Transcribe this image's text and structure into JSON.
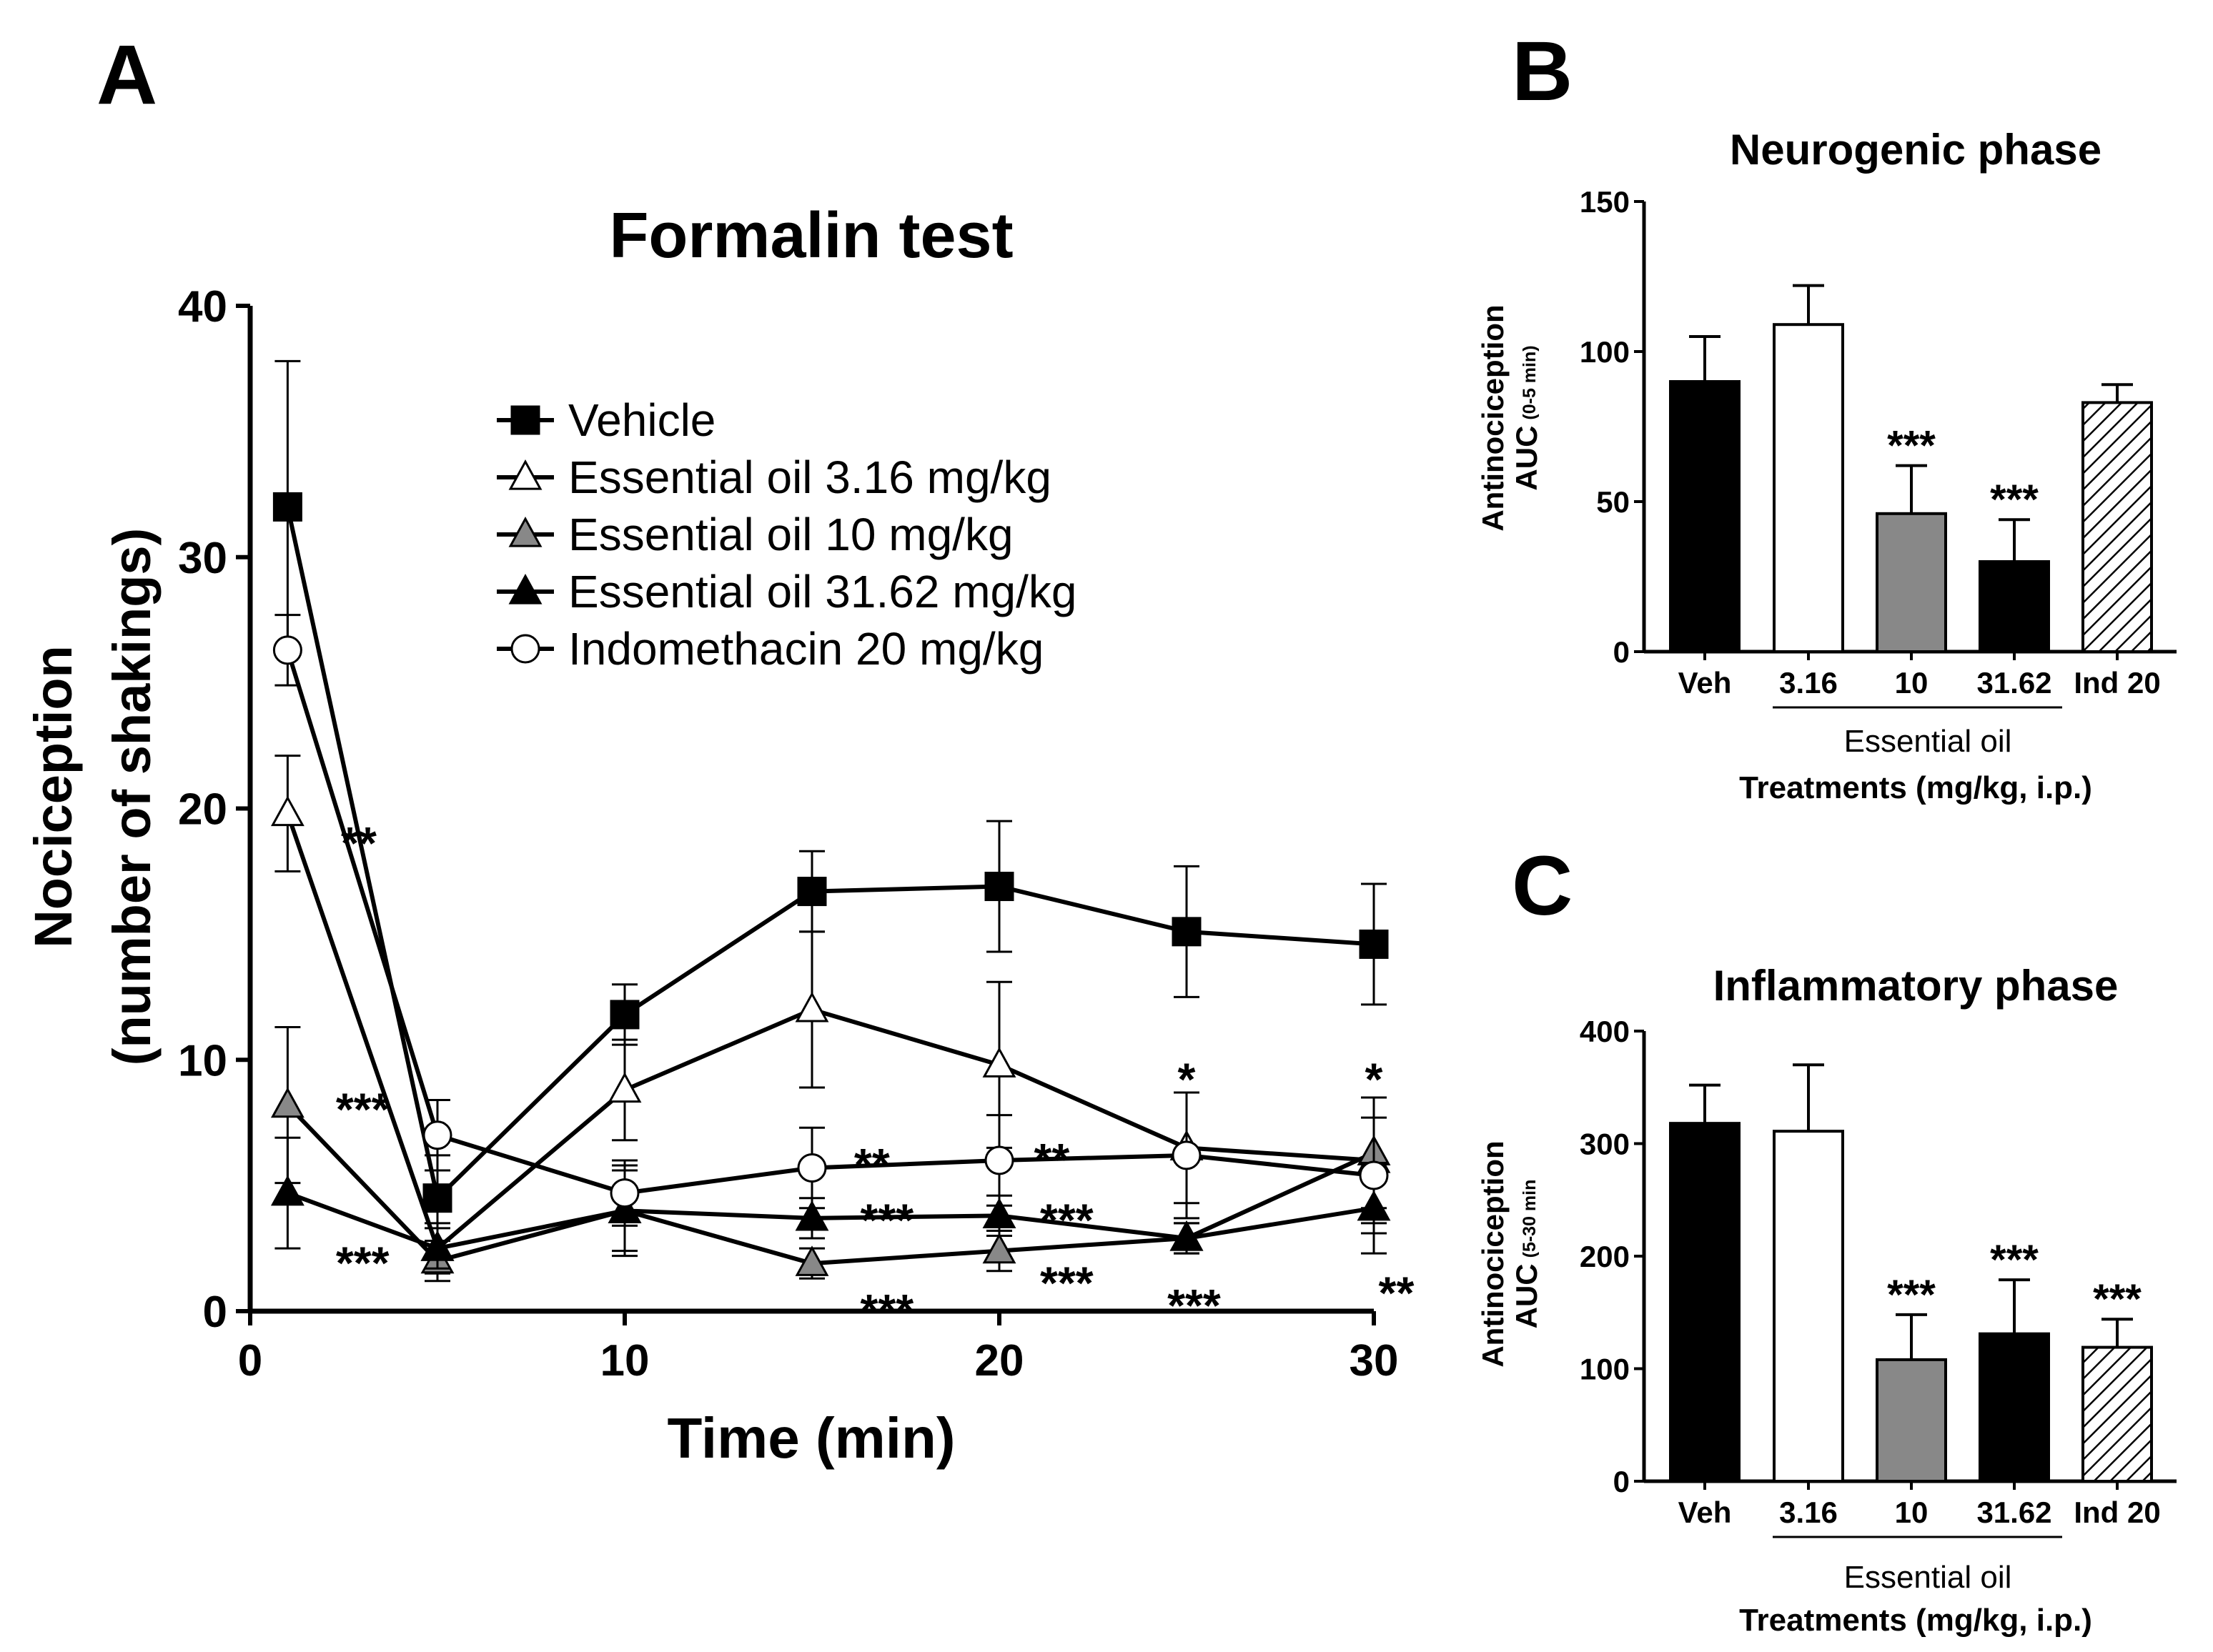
{
  "panel_letters": {
    "a": "A",
    "b": "B",
    "c": "C"
  },
  "legend": [
    {
      "label": "Vehicle",
      "marker": "square",
      "fill": "#000000"
    },
    {
      "label": "Essential oil  3.16 mg/kg",
      "marker": "triangle",
      "fill": "#ffffff"
    },
    {
      "label": "Essential oil 10 mg/kg",
      "marker": "triangle",
      "fill": "#888888"
    },
    {
      "label": "Essential oil 31.62 mg/kg",
      "marker": "triangle",
      "fill": "#000000"
    },
    {
      "label": "Indomethacin 20 mg/kg",
      "marker": "circle",
      "fill": "#ffffff"
    }
  ],
  "chart_data": [
    {
      "id": "A",
      "type": "line",
      "title": "Formalin test",
      "xlabel": "Time (min)",
      "ylabel_line1": "Nociception",
      "ylabel_line2": "(number of shakings)",
      "xlim": [
        0,
        30
      ],
      "ylim": [
        0,
        40
      ],
      "xticks": [
        0,
        10,
        20,
        30
      ],
      "yticks": [
        0,
        10,
        20,
        30,
        40
      ],
      "x": [
        1,
        5,
        10,
        15,
        20,
        25,
        30
      ],
      "series": [
        {
          "name": "Vehicle",
          "marker": "square",
          "fill": "#000000",
          "values": [
            32,
            4.5,
            11.8,
            16.7,
            16.9,
            15.1,
            14.6
          ],
          "errors": [
            5.8,
            1.7,
            1.2,
            1.6,
            2.6,
            2.6,
            2.4
          ]
        },
        {
          "name": "Essential oil  3.16 mg/kg",
          "marker": "triangle",
          "fill": "#ffffff",
          "values": [
            19.8,
            2.5,
            8.8,
            12.0,
            9.8,
            6.5,
            6.0
          ],
          "errors": [
            2.3,
            1.0,
            2.0,
            3.1,
            3.3,
            2.2,
            2.5
          ]
        },
        {
          "name": "Essential oil 10 mg/kg",
          "marker": "triangle",
          "fill": "#888888",
          "values": [
            8.2,
            2.0,
            4.0,
            1.9,
            2.4,
            2.9,
            6.3
          ],
          "errors": [
            3.1,
            0.8,
            1.6,
            0.6,
            0.8,
            0.6,
            2.2
          ]
        },
        {
          "name": "Essential oil 31.62 mg/kg",
          "marker": "triangle",
          "fill": "#000000",
          "values": [
            4.7,
            2.5,
            4.0,
            3.7,
            3.8,
            2.9,
            4.1
          ],
          "errors": [
            2.2,
            0.8,
            1.8,
            0.8,
            0.8,
            0.6,
            1.8
          ]
        },
        {
          "name": "Indomethacin 20 mg/kg",
          "marker": "circle",
          "fill": "#ffffff",
          "values": [
            26.3,
            7.0,
            4.7,
            5.7,
            6.0,
            6.2,
            5.4
          ],
          "errors": [
            1.4,
            1.4,
            1.3,
            1.6,
            1.8,
            2.5,
            2.3
          ]
        }
      ],
      "annotations": [
        {
          "text": "**",
          "x": 2.9,
          "y": 18.0
        },
        {
          "text": "***",
          "x": 3.0,
          "y": 7.4
        },
        {
          "text": "***",
          "x": 3.0,
          "y": 1.3
        },
        {
          "text": "**",
          "x": 16.6,
          "y": 5.2
        },
        {
          "text": "***",
          "x": 17.0,
          "y": 3.0
        },
        {
          "text": "***",
          "x": 17.0,
          "y": -0.6
        },
        {
          "text": "**",
          "x": 21.4,
          "y": 5.4
        },
        {
          "text": "***",
          "x": 21.8,
          "y": 3.0
        },
        {
          "text": "***",
          "x": 21.8,
          "y": 0.5
        },
        {
          "text": "*",
          "x": 25.0,
          "y": 8.6
        },
        {
          "text": "***",
          "x": 25.2,
          "y": -0.4
        },
        {
          "text": "*",
          "x": 30.0,
          "y": 8.6
        },
        {
          "text": "**",
          "x": 30.6,
          "y": 0.1
        }
      ]
    },
    {
      "id": "B",
      "type": "bar",
      "title": "Neurogenic phase",
      "ylabel": "Antinociception",
      "ylabel2_main": "AUC",
      "ylabel2_sub": "(0-5 min)",
      "xlabel": "Treatments (mg/kg, i.p.)",
      "group_label": "Essential oil",
      "ylim": [
        0,
        150
      ],
      "yticks": [
        0,
        50,
        100,
        150
      ],
      "categories": [
        "Veh",
        "3.16",
        "10",
        "31.62",
        "Ind 20"
      ],
      "values": [
        90,
        109,
        46,
        30,
        83
      ],
      "errors": [
        15,
        13,
        16,
        14,
        6
      ],
      "fills": [
        "#000000",
        "#ffffff",
        "#888888",
        "#000000",
        "hatch"
      ],
      "stars": [
        "",
        "",
        "***",
        "***",
        ""
      ]
    },
    {
      "id": "C",
      "type": "bar",
      "title": "Inflammatory phase",
      "ylabel": "Antinociception",
      "ylabel2_main": "AUC",
      "ylabel2_sub": "(5-30 min",
      "xlabel": "Treatments (mg/kg, i.p.)",
      "group_label": "Essential oil",
      "ylim": [
        0,
        400
      ],
      "yticks": [
        0,
        100,
        200,
        300,
        400
      ],
      "categories": [
        "Veh",
        "3.16",
        "10",
        "31.62",
        "Ind 20"
      ],
      "values": [
        318,
        311,
        108,
        131,
        119
      ],
      "errors": [
        34,
        59,
        40,
        48,
        25
      ],
      "fills": [
        "#000000",
        "#ffffff",
        "#888888",
        "#000000",
        "hatch"
      ],
      "stars": [
        "",
        "",
        "***",
        "***",
        "***"
      ]
    }
  ]
}
